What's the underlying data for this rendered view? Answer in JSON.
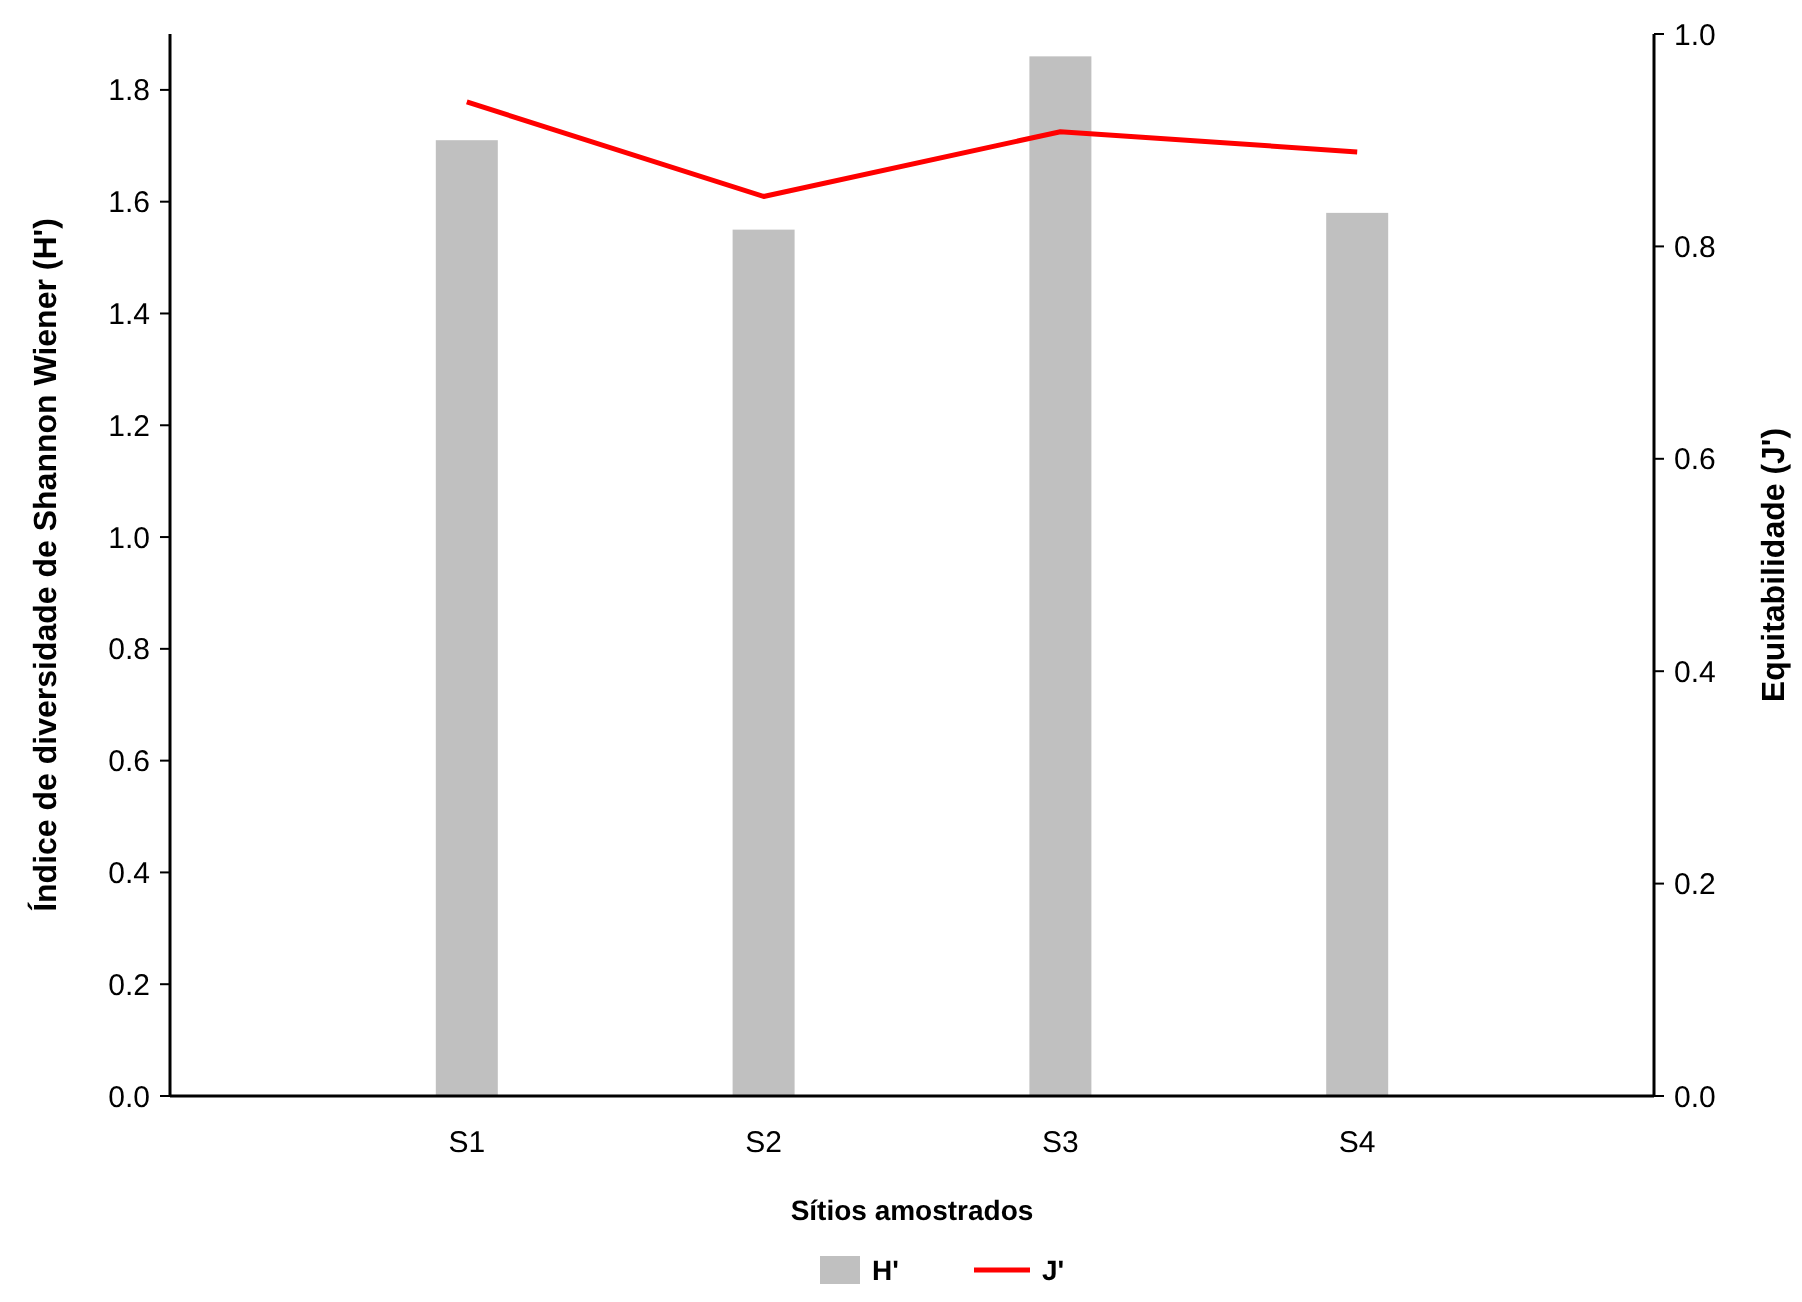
{
  "chart_data": {
    "type": "bar",
    "xlabel": "Sítios amostrados",
    "ylabel": "Índice de diversidade de Shannon Wiener (H')",
    "y2label": "Equitabilidade (J')",
    "categories": [
      "S1",
      "S2",
      "S3",
      "S4"
    ],
    "series": [
      {
        "name": "H'",
        "color": "#c0c0c0",
        "values": [
          1.71,
          1.55,
          1.86,
          1.58
        ]
      },
      {
        "name": "J'",
        "type": "line",
        "axis": "y2",
        "color": "#ff0000",
        "values": [
          0.936,
          0.847,
          0.908,
          0.889
        ]
      }
    ],
    "ylim": [
      0,
      1.9
    ],
    "yticks": [
      {
        "value": 0,
        "label": "0.0"
      },
      {
        "value": 0.2,
        "label": "0.2"
      },
      {
        "value": 0.4,
        "label": "0.4"
      },
      {
        "value": 0.6,
        "label": "0.6"
      },
      {
        "value": 0.8,
        "label": "0.8"
      },
      {
        "value": 1.0,
        "label": "1.0"
      },
      {
        "value": 1.2,
        "label": "1.2"
      },
      {
        "value": 1.4,
        "label": "1.4"
      },
      {
        "value": 1.6,
        "label": "1.6"
      },
      {
        "value": 1.8,
        "label": "1.8"
      }
    ],
    "y2lim": [
      0,
      1.0
    ],
    "y2ticks": [
      {
        "value": 0,
        "label": "0.0"
      },
      {
        "value": 0.2,
        "label": "0.2"
      },
      {
        "value": 0.4,
        "label": "0.4"
      },
      {
        "value": 0.6,
        "label": "0.6"
      },
      {
        "value": 0.8,
        "label": "0.8"
      },
      {
        "value": 1.0,
        "label": "1.0"
      }
    ],
    "legend": "bottom",
    "grid": false,
    "marker": "none"
  }
}
